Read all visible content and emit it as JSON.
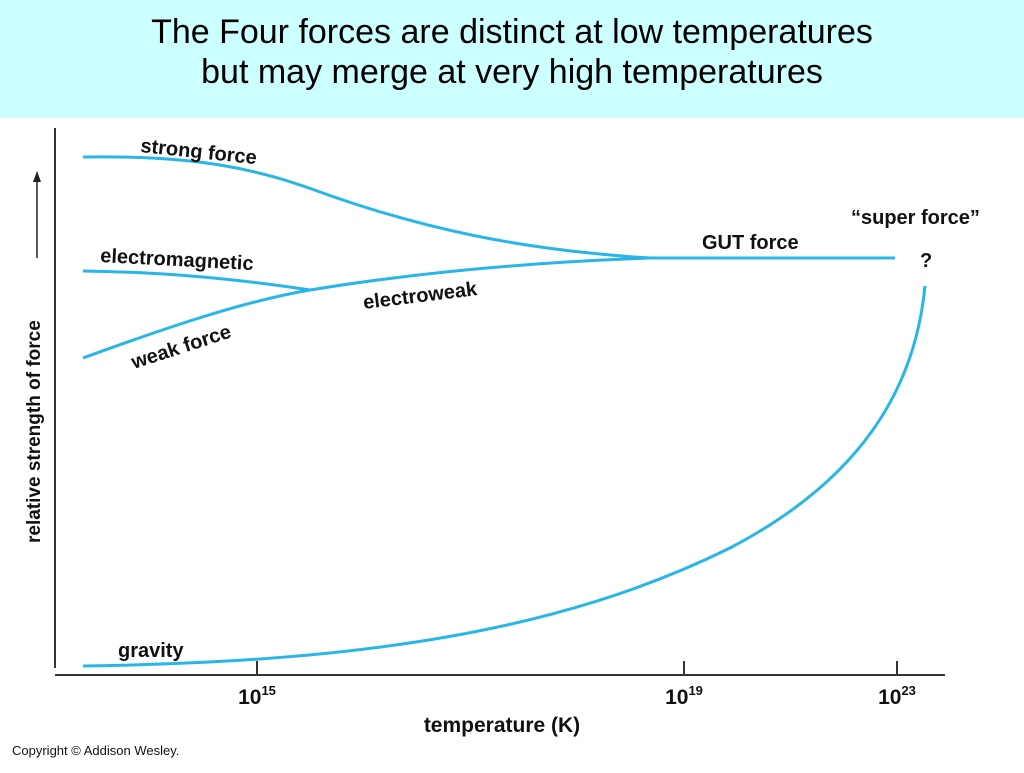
{
  "title": {
    "line1": "The Four forces are distinct at low temperatures",
    "line2": "but may merge at very high temperatures"
  },
  "diagram": {
    "y_axis_label": "relative strength of force",
    "x_axis_label": "temperature (K)",
    "x_ticks": [
      {
        "base": "10",
        "exp": "15"
      },
      {
        "base": "10",
        "exp": "19"
      },
      {
        "base": "10",
        "exp": "23"
      }
    ],
    "curve_labels": {
      "strong": "strong force",
      "electromagnetic": "electromagnetic",
      "weak": "weak force",
      "electroweak": "electroweak",
      "gut": "GUT force",
      "super": "“super force”",
      "question": "?",
      "gravity": "gravity"
    },
    "curve_color": "#29b6e6",
    "copyright": "Copyright © Addison Wesley."
  }
}
